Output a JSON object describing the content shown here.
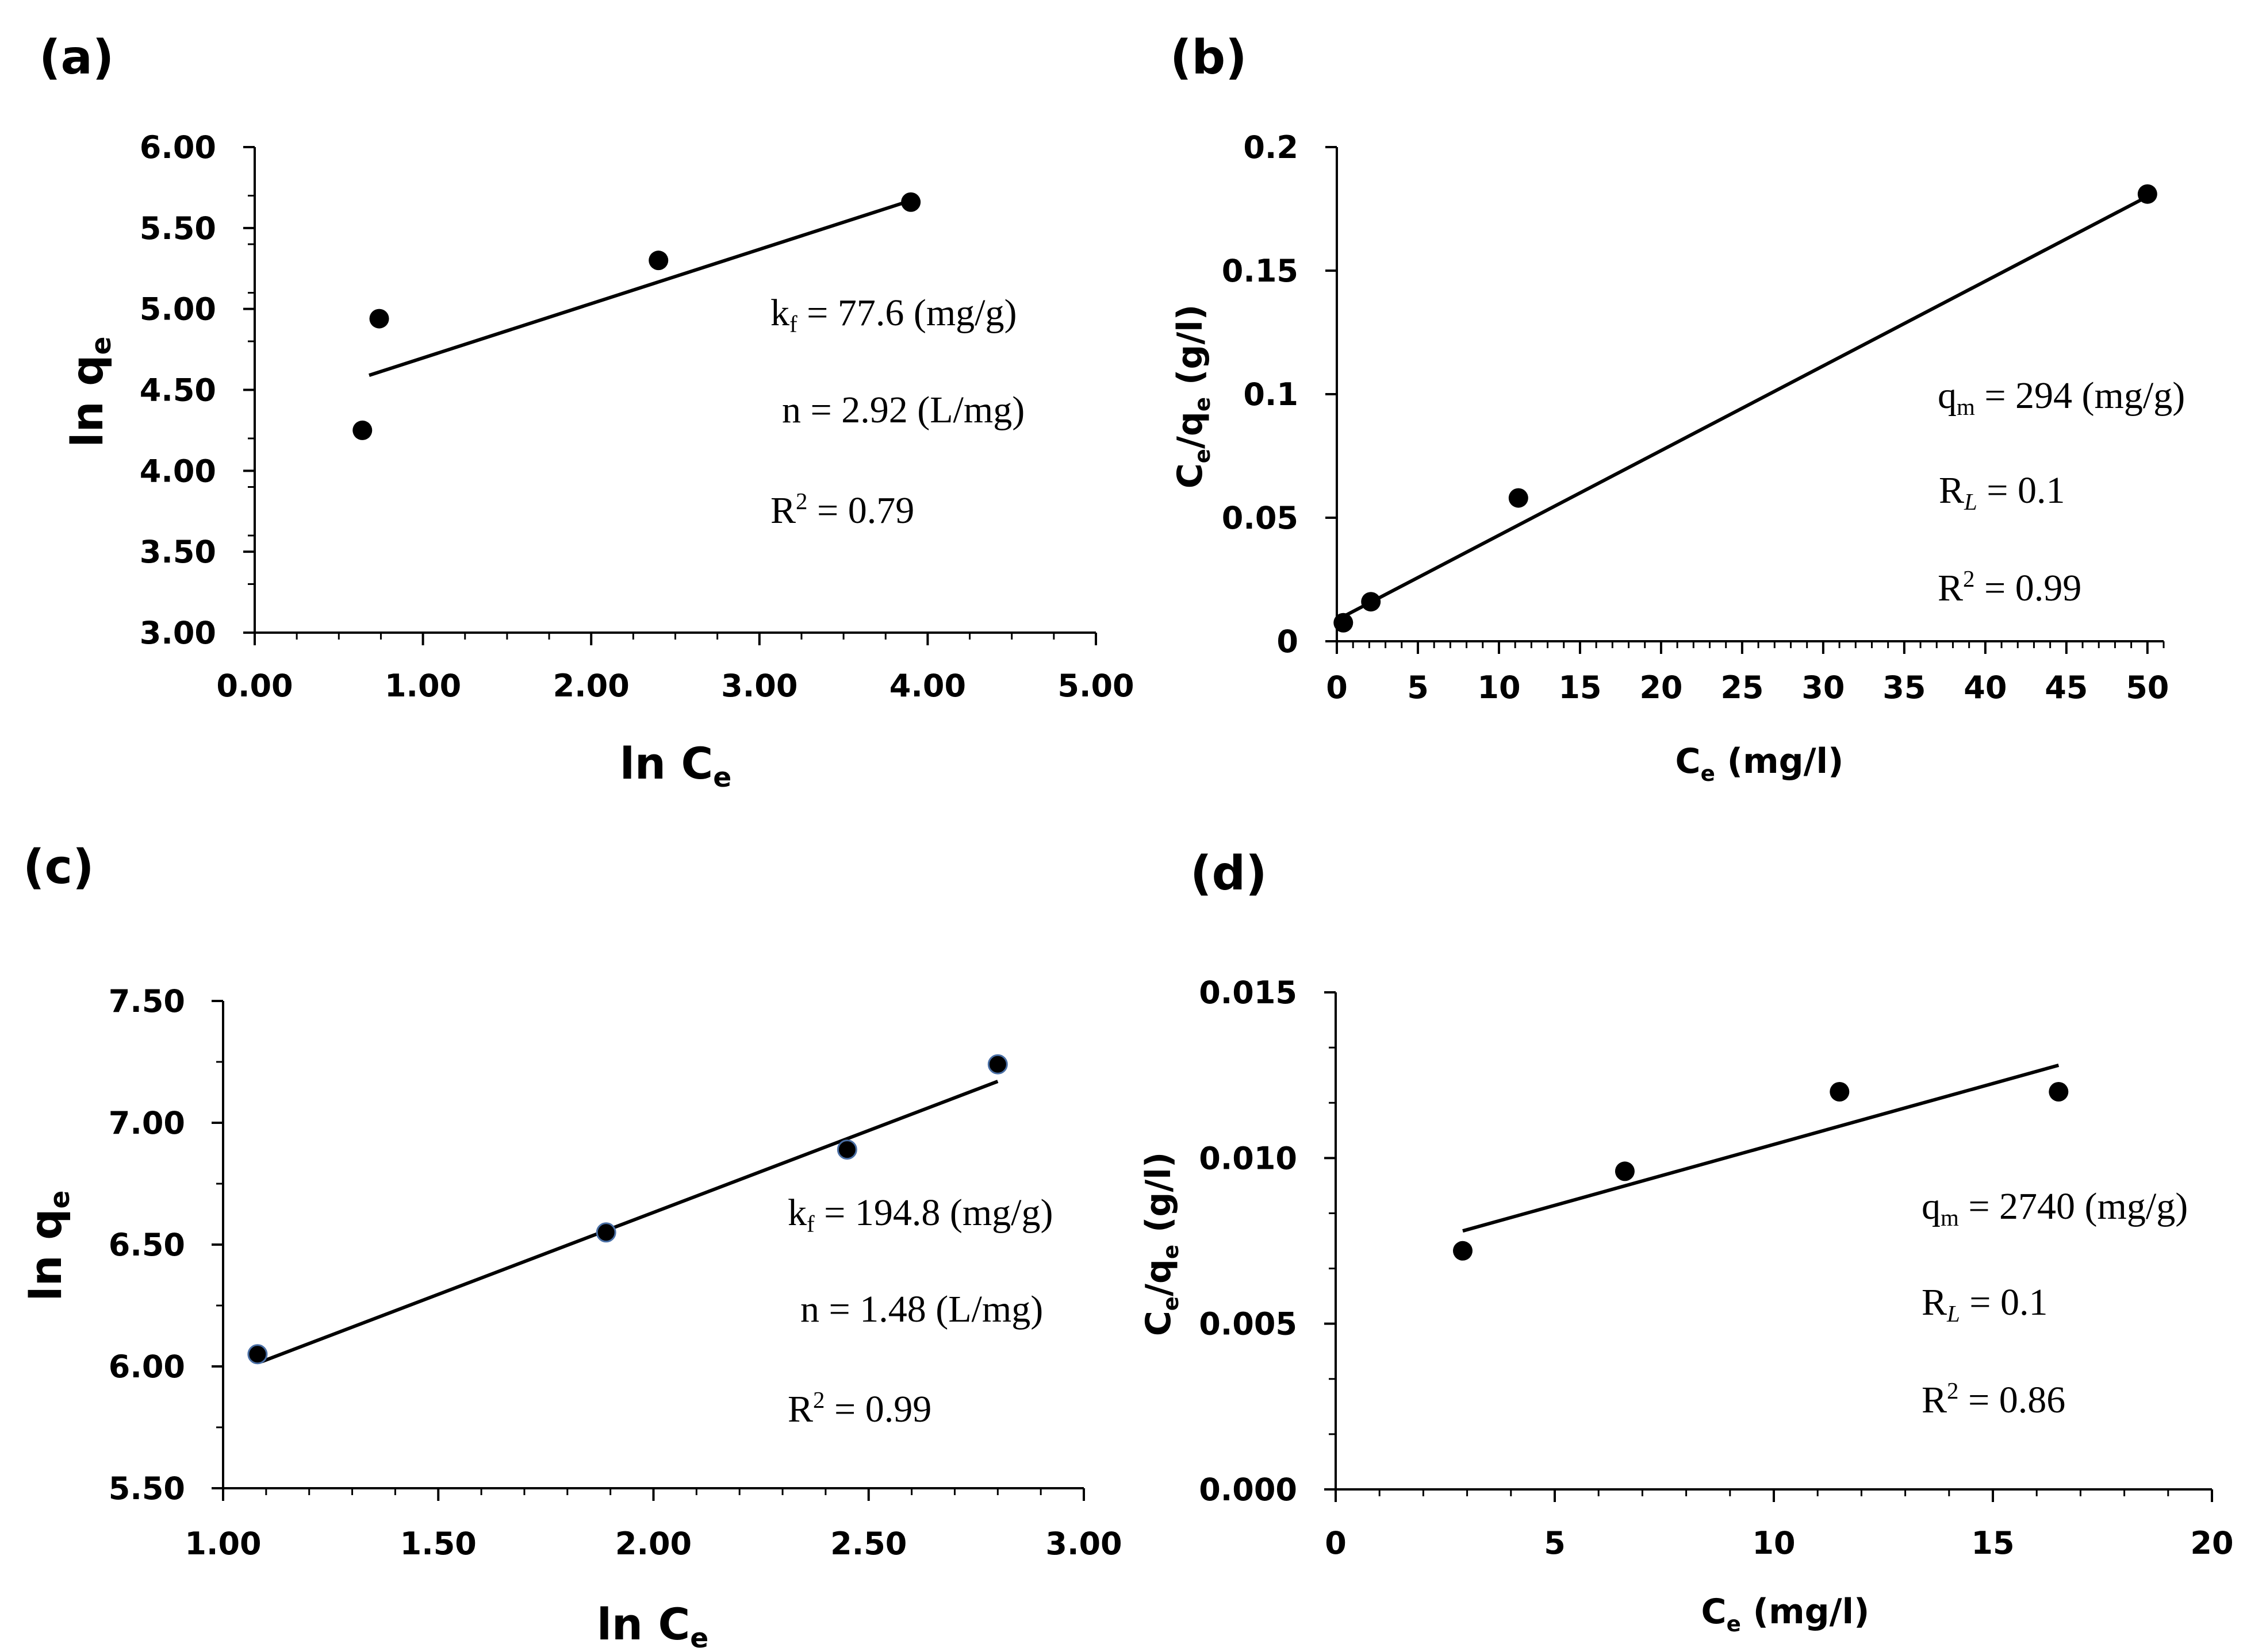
{
  "figure": {
    "panels": [
      {
        "label": "(a)",
        "title": "(a)",
        "xlabel": "ln C",
        "xlabel_sub": "e",
        "ylabel": "ln q",
        "ylabel_sub": "e",
        "annotations": [
          {
            "k": "k",
            "k_sub": "f",
            "rest": " = 77.6 (mg/g)"
          },
          {
            "k": "n",
            "k_sub": "",
            "rest": " = 2.92 (L/mg)"
          },
          {
            "k": "R",
            "k_sup": "2",
            "rest": " = 0.79"
          }
        ]
      },
      {
        "label": "(b)",
        "title": "(b)",
        "xlabel": "C",
        "xlabel_sub": "e",
        "xlabel_rest": " (mg/l)",
        "ylabel": "C",
        "ylabel_sub": "e",
        "ylabel_mid": "/q",
        "ylabel_sub2": "e",
        "ylabel_rest": " (g/l)",
        "annotations": [
          {
            "k": "q",
            "k_sub": "m",
            "rest": " = 294 (mg/g)"
          },
          {
            "k": "R",
            "k_sub_italic": "L",
            "rest": " = 0.1"
          },
          {
            "k": "R",
            "k_sup": "2",
            "rest": " = 0.99"
          }
        ]
      },
      {
        "label": "(c)",
        "title": "(c)",
        "xlabel": "ln C",
        "xlabel_sub": "e",
        "ylabel": "ln q",
        "ylabel_sub": "e",
        "annotations": [
          {
            "k": "k",
            "k_sub": "f",
            "rest": " = 194.8 (mg/g)"
          },
          {
            "k": "n",
            "k_sub": "",
            "rest": " = 1.48 (L/mg)"
          },
          {
            "k": "R",
            "k_sup": "2",
            "rest": " = 0.99"
          }
        ]
      },
      {
        "label": "(d)",
        "title": "(d)",
        "xlabel": "C",
        "xlabel_sub": "e",
        "xlabel_rest": " (mg/l)",
        "ylabel": "C",
        "ylabel_sub": "e",
        "ylabel_mid": "/q",
        "ylabel_sub2": "e",
        "ylabel_rest": " (g/l)",
        "annotations": [
          {
            "k": "q",
            "k_sub": "m",
            "rest": " = 2740 (mg/g)"
          },
          {
            "k": "R",
            "k_sub_italic": "L",
            "rest": " = 0.1"
          },
          {
            "k": "R",
            "k_sup": "2",
            "rest": " = 0.86"
          }
        ]
      }
    ]
  },
  "chart_data": [
    {
      "type": "scatter",
      "title": "(a)",
      "xlabel": "ln Ce",
      "ylabel": "ln qe",
      "xlim": [
        0,
        5
      ],
      "ylim": [
        3,
        6
      ],
      "xticks": [
        0,
        1,
        2,
        3,
        4,
        5
      ],
      "xtick_labels": [
        "0.00",
        "1.00",
        "2.00",
        "3.00",
        "4.00",
        "5.00"
      ],
      "yticks": [
        3,
        3.5,
        4,
        4.5,
        5,
        5.5,
        6
      ],
      "ytick_labels": [
        "3.00",
        "3.50",
        "4.00",
        "4.50",
        "5.00",
        "5.50",
        "6.00"
      ],
      "x": [
        0.64,
        0.74,
        2.4,
        3.9
      ],
      "y": [
        4.25,
        4.94,
        5.3,
        5.66
      ],
      "trendline": {
        "x": [
          0.68,
          3.9
        ],
        "y": [
          4.59,
          5.67
        ]
      },
      "grid": false
    },
    {
      "type": "scatter",
      "title": "(b)",
      "xlabel": "Ce (mg/l)",
      "ylabel": "Ce/qe (g/l)",
      "xlim": [
        0,
        51
      ],
      "ylim": [
        0,
        0.2
      ],
      "xticks": [
        0,
        5,
        10,
        15,
        20,
        25,
        30,
        35,
        40,
        45,
        50
      ],
      "xtick_labels": [
        "0",
        "5",
        "10",
        "15",
        "20",
        "25",
        "30",
        "35",
        "40",
        "45",
        "50"
      ],
      "yticks": [
        0,
        0.05,
        0.1,
        0.15,
        0.2
      ],
      "ytick_labels": [
        "0",
        "0.05",
        "0.1",
        "0.15",
        "0.2"
      ],
      "x": [
        0.4,
        2.1,
        11.2,
        50
      ],
      "y": [
        0.0075,
        0.016,
        0.058,
        0.181
      ],
      "trendline": {
        "x": [
          0.4,
          50
        ],
        "y": [
          0.01,
          0.18
        ]
      },
      "grid": false
    },
    {
      "type": "scatter",
      "title": "(c)",
      "xlabel": "ln Ce",
      "ylabel": "ln qe",
      "xlim": [
        1,
        3
      ],
      "ylim": [
        5.5,
        7.5
      ],
      "xticks": [
        1,
        1.5,
        2,
        2.5,
        3
      ],
      "xtick_labels": [
        "1.00",
        "1.50",
        "2.00",
        "2.50",
        "3.00"
      ],
      "yticks": [
        5.5,
        6,
        6.5,
        7,
        7.5
      ],
      "ytick_labels": [
        "5.50",
        "6.00",
        "6.50",
        "7.00",
        "7.50"
      ],
      "x": [
        1.08,
        1.89,
        2.45,
        2.8
      ],
      "y": [
        6.05,
        6.55,
        6.89,
        7.24
      ],
      "trendline": {
        "x": [
          1.09,
          2.8
        ],
        "y": [
          6.02,
          7.17
        ]
      },
      "grid": false
    },
    {
      "type": "scatter",
      "title": "(d)",
      "xlabel": "Ce (mg/l)",
      "ylabel": "Ce/qe (g/l)",
      "xlim": [
        0,
        20
      ],
      "ylim": [
        0,
        0.015
      ],
      "xticks": [
        0,
        5,
        10,
        15,
        20
      ],
      "xtick_labels": [
        "0",
        "5",
        "10",
        "15",
        "20"
      ],
      "yticks": [
        0,
        0.005,
        0.01,
        0.015
      ],
      "ytick_labels": [
        "0.000",
        "0.005",
        "0.010",
        "0.015"
      ],
      "x": [
        2.9,
        6.6,
        11.5,
        16.5
      ],
      "y": [
        0.0072,
        0.0096,
        0.012,
        0.012
      ],
      "trendline": {
        "x": [
          2.9,
          16.5
        ],
        "y": [
          0.0078,
          0.0128
        ]
      },
      "grid": false
    }
  ]
}
